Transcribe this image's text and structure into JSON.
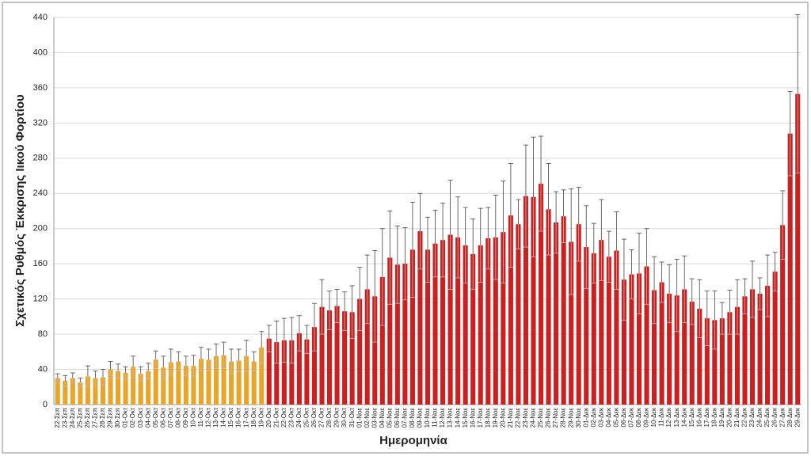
{
  "chart_data": {
    "type": "bar",
    "y_label": "Σχετικός Ρυθμός Έκκρισης Ιικού Φορτίου",
    "x_label": "Ημερομηνία",
    "categories": [
      "22-Σεπ",
      "23-Σεπ",
      "24-Σεπ",
      "25-Σεπ",
      "26-Σεπ",
      "27-Σεπ",
      "28-Σεπ",
      "29-Σεπ",
      "30-Σεπ",
      "01-Οκτ",
      "02-Οκτ",
      "03-Οκτ",
      "04-Οκτ",
      "05-Οκτ",
      "06-Οκτ",
      "07-Οκτ",
      "08-Οκτ",
      "09-Οκτ",
      "10-Οκτ",
      "11-Οκτ",
      "12-Οκτ",
      "13-Οκτ",
      "14-Οκτ",
      "15-Οκτ",
      "16-Οκτ",
      "17-Οκτ",
      "18-Οκτ",
      "19-Οκτ",
      "20-Οκτ",
      "21-Οκτ",
      "22-Οκτ",
      "23-Οκτ",
      "24-Οκτ",
      "25-Οκτ",
      "26-Οκτ",
      "27-Οκτ",
      "28-Οκτ",
      "29-Οκτ",
      "30-Οκτ",
      "31-Οκτ",
      "01-Νοε",
      "02-Νοε",
      "03-Νοε",
      "04-Νοε",
      "05-Νοε",
      "06-Νοε",
      "07-Νοε",
      "08-Νοε",
      "09-Νοε",
      "10-Νοε",
      "11-Νοε",
      "12-Νοε",
      "13-Νοε",
      "14-Νοε",
      "15-Νοε",
      "16-Νοε",
      "17-Νοε",
      "18-Νοε",
      "19-Νοε",
      "20-Νοε",
      "21-Νοε",
      "22-Νοε",
      "23-Νοε",
      "24-Νοε",
      "25-Νοε",
      "26-Νοε",
      "27-Νοε",
      "28-Νοε",
      "29-Νοε",
      "30-Νοε",
      "01-Δεκ",
      "02-Δεκ",
      "03-Δεκ",
      "04-Δεκ",
      "05-Δεκ",
      "06-Δεκ",
      "07-Δεκ",
      "08-Δεκ",
      "09-Δεκ",
      "10-Δεκ",
      "11-Δεκ",
      "12-Δεκ",
      "13-Δεκ",
      "14-Δεκ",
      "15-Δεκ",
      "16-Δεκ",
      "17-Δεκ",
      "18-Δεκ",
      "19-Δεκ",
      "20-Δεκ",
      "21-Δεκ",
      "22-Δεκ",
      "23-Δεκ",
      "24-Δεκ",
      "25-Δεκ",
      "26-Δεκ",
      "27-Δεκ",
      "28-Δεκ",
      "29-Δεκ"
    ],
    "series": [
      {
        "color": "#e9a52a",
        "values": [
          30,
          27,
          30,
          25,
          32,
          30,
          31,
          40,
          38,
          36,
          43,
          35,
          38,
          51,
          42,
          48,
          49,
          44,
          44,
          52,
          51,
          55,
          56,
          49,
          50,
          55,
          49,
          65,
          null,
          null,
          null,
          null,
          null,
          null,
          null,
          null,
          null,
          null,
          null,
          null,
          null,
          null,
          null,
          null,
          null,
          null,
          null,
          null,
          null,
          null,
          null,
          null,
          null,
          null,
          null,
          null,
          null,
          null,
          null,
          null,
          null,
          null,
          null,
          null,
          null,
          null,
          null,
          null,
          null,
          null,
          null,
          null,
          null,
          null,
          null,
          null,
          null,
          null,
          null,
          null,
          null,
          null,
          null,
          null,
          null,
          null,
          null,
          null,
          null,
          null,
          null,
          null,
          null,
          null,
          null,
          null,
          null,
          null,
          null
        ],
        "errors": [
          5,
          6,
          6,
          5,
          12,
          8,
          9,
          9,
          8,
          7,
          12,
          8,
          9,
          10,
          13,
          15,
          11,
          11,
          12,
          13,
          12,
          14,
          15,
          14,
          13,
          18,
          11,
          18,
          null,
          null,
          null,
          null,
          null,
          null,
          null,
          null,
          null,
          null,
          null,
          null,
          null,
          null,
          null,
          null,
          null,
          null,
          null,
          null,
          null,
          null,
          null,
          null,
          null,
          null,
          null,
          null,
          null,
          null,
          null,
          null,
          null,
          null,
          null,
          null,
          null,
          null,
          null,
          null,
          null,
          null,
          null,
          null,
          null,
          null,
          null,
          null,
          null,
          null,
          null,
          null,
          null,
          null,
          null,
          null,
          null,
          null,
          null,
          null,
          null,
          null,
          null,
          null,
          null,
          null,
          null,
          null,
          null,
          null,
          null
        ]
      },
      {
        "color": "#cc2020",
        "values": [
          null,
          null,
          null,
          null,
          null,
          null,
          null,
          null,
          null,
          null,
          null,
          null,
          null,
          null,
          null,
          null,
          null,
          null,
          null,
          null,
          null,
          null,
          null,
          null,
          null,
          null,
          null,
          null,
          75,
          71,
          73,
          73,
          81,
          74,
          88,
          111,
          107,
          112,
          106,
          105,
          120,
          131,
          123,
          145,
          167,
          159,
          160,
          176,
          197,
          176,
          183,
          187,
          193,
          190,
          181,
          171,
          181,
          189,
          190,
          196,
          215,
          205,
          237,
          236,
          251,
          222,
          207,
          214,
          185,
          205,
          179,
          172,
          187,
          168,
          175,
          142,
          148,
          149,
          157,
          130,
          139,
          126,
          124,
          131,
          117,
          109,
          98,
          96,
          98,
          105,
          111,
          123,
          131,
          126,
          135,
          151,
          204,
          308,
          353
        ],
        "errors": [
          null,
          null,
          null,
          null,
          null,
          null,
          null,
          null,
          null,
          null,
          null,
          null,
          null,
          null,
          null,
          null,
          null,
          null,
          null,
          null,
          null,
          null,
          null,
          null,
          null,
          null,
          null,
          null,
          15,
          24,
          25,
          26,
          20,
          16,
          27,
          31,
          22,
          19,
          22,
          30,
          36,
          39,
          52,
          55,
          53,
          44,
          41,
          54,
          43,
          37,
          38,
          42,
          62,
          46,
          43,
          40,
          42,
          35,
          48,
          58,
          59,
          28,
          58,
          68,
          54,
          52,
          35,
          30,
          60,
          42,
          47,
          34,
          46,
          29,
          44,
          46,
          28,
          46,
          43,
          38,
          23,
          33,
          41,
          38,
          26,
          33,
          31,
          33,
          18,
          25,
          31,
          20,
          32,
          18,
          35,
          22,
          39,
          48,
          90
        ]
      }
    ],
    "ylim": [
      0,
      440
    ],
    "yticks": [
      0,
      40,
      80,
      120,
      160,
      200,
      240,
      280,
      320,
      360,
      400,
      440
    ],
    "grid": true
  }
}
